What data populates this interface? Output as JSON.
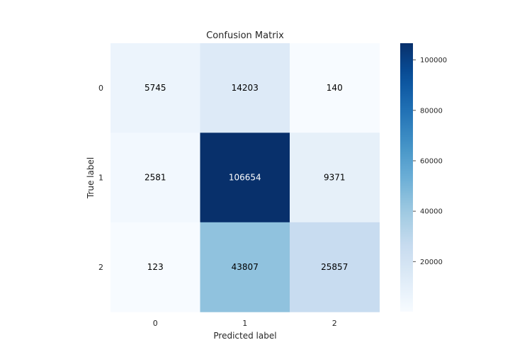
{
  "chart_data": {
    "type": "heatmap",
    "title": "Confusion Matrix",
    "xlabel": "Predicted label",
    "ylabel": "True label",
    "x_categories": [
      "0",
      "1",
      "2"
    ],
    "y_categories": [
      "0",
      "1",
      "2"
    ],
    "matrix": [
      [
        5745,
        14203,
        140
      ],
      [
        2581,
        106654,
        9371
      ],
      [
        123,
        43807,
        25857
      ]
    ],
    "colormap": "Blues",
    "colorbar": {
      "ticks": [
        20000,
        40000,
        60000,
        80000,
        100000
      ],
      "tick_labels": [
        "20000",
        "40000",
        "60000",
        "80000",
        "100000"
      ],
      "range": [
        123,
        106654
      ]
    },
    "grid": false,
    "colors": {
      "min": "#f7fbff",
      "max": "#08306b"
    }
  }
}
